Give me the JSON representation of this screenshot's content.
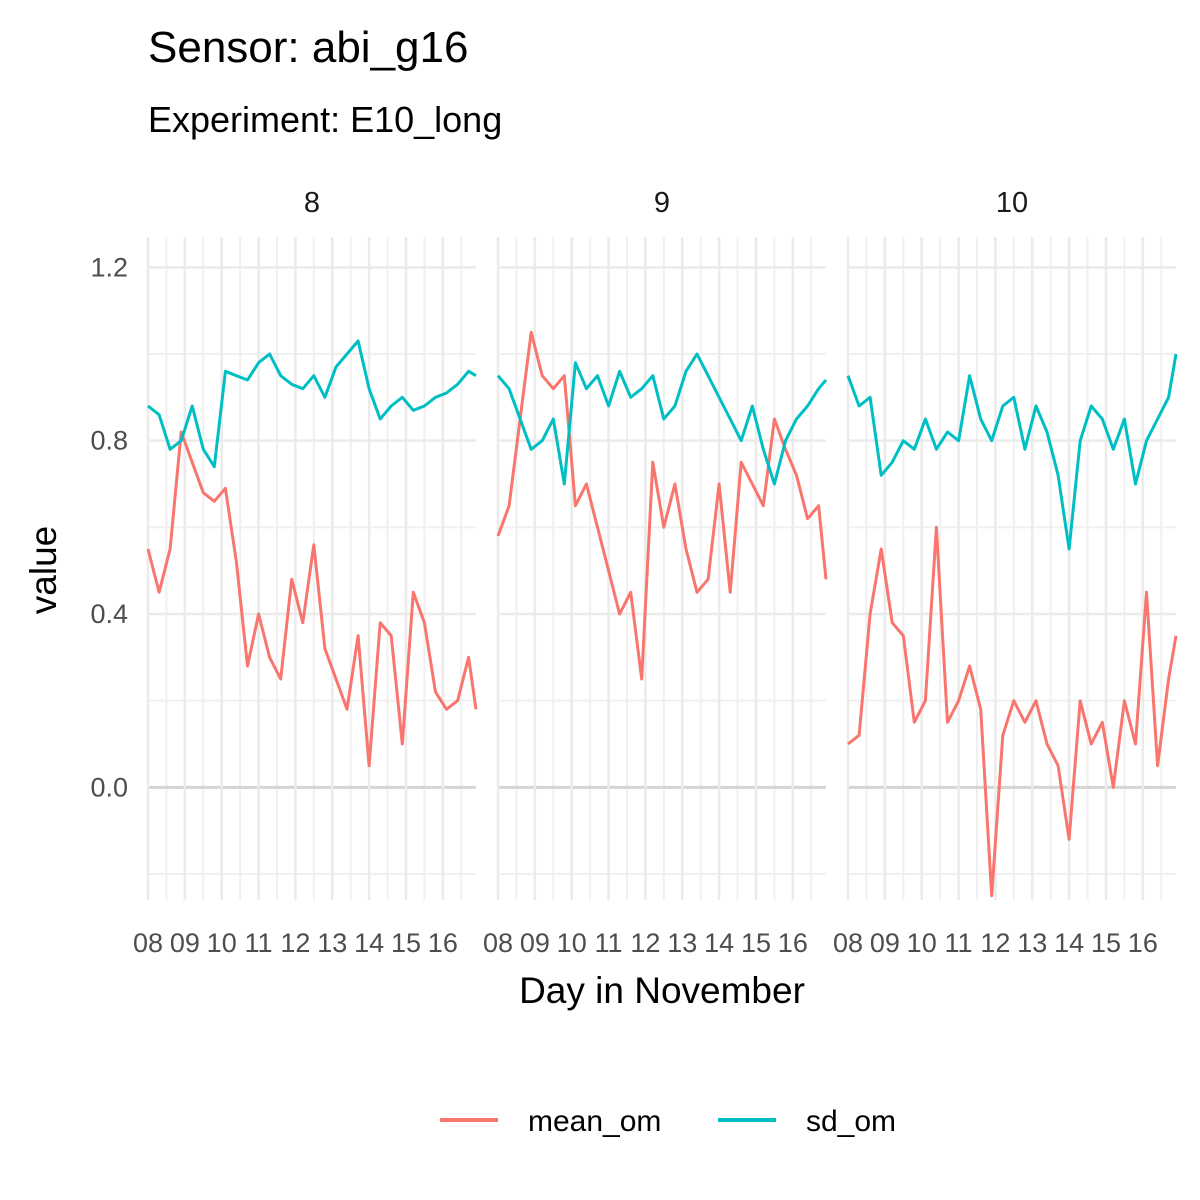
{
  "chart_data": {
    "type": "line",
    "title": "Sensor: abi_g16",
    "subtitle": "Experiment: E10_long",
    "xlabel": "Day in November",
    "ylabel": "value",
    "x_tick_labels": [
      "08",
      "09",
      "10",
      "11",
      "12",
      "13",
      "14",
      "15",
      "16"
    ],
    "x_range": [
      8,
      16.9
    ],
    "ylim": [
      -0.26,
      1.27
    ],
    "y_ticks": [
      0.0,
      0.4,
      0.8,
      1.2
    ],
    "y_tick_labels": [
      "0.0",
      "0.4",
      "0.8",
      "1.2"
    ],
    "grid": true,
    "legend_position": "bottom",
    "legend": [
      "mean_om",
      "sd_om"
    ],
    "colors": {
      "mean_om": "#F8766D",
      "sd_om": "#00BFC4"
    },
    "panels": [
      {
        "label": "8",
        "x": [
          8.0,
          8.3,
          8.6,
          8.9,
          9.2,
          9.5,
          9.8,
          10.1,
          10.4,
          10.7,
          11.0,
          11.3,
          11.6,
          11.9,
          12.2,
          12.5,
          12.8,
          13.1,
          13.4,
          13.7,
          14.0,
          14.3,
          14.6,
          14.9,
          15.2,
          15.5,
          15.8,
          16.1,
          16.4,
          16.7,
          16.9
        ],
        "series": [
          {
            "name": "mean_om",
            "values": [
              0.55,
              0.45,
              0.55,
              0.82,
              0.75,
              0.68,
              0.66,
              0.69,
              0.52,
              0.28,
              0.4,
              0.3,
              0.25,
              0.48,
              0.38,
              0.56,
              0.32,
              0.25,
              0.18,
              0.35,
              0.05,
              0.38,
              0.35,
              0.1,
              0.45,
              0.38,
              0.22,
              0.18,
              0.2,
              0.3,
              0.18
            ]
          },
          {
            "name": "sd_om",
            "values": [
              0.88,
              0.86,
              0.78,
              0.8,
              0.88,
              0.78,
              0.74,
              0.96,
              0.95,
              0.94,
              0.98,
              1.0,
              0.95,
              0.93,
              0.92,
              0.95,
              0.9,
              0.97,
              1.0,
              1.03,
              0.92,
              0.85,
              0.88,
              0.9,
              0.87,
              0.88,
              0.9,
              0.91,
              0.93,
              0.96,
              0.95
            ]
          }
        ]
      },
      {
        "label": "9",
        "x": [
          8.0,
          8.3,
          8.6,
          8.9,
          9.2,
          9.5,
          9.8,
          10.1,
          10.4,
          10.7,
          11.0,
          11.3,
          11.6,
          11.9,
          12.2,
          12.5,
          12.8,
          13.1,
          13.4,
          13.7,
          14.0,
          14.3,
          14.6,
          14.9,
          15.2,
          15.5,
          15.8,
          16.1,
          16.4,
          16.7,
          16.9
        ],
        "series": [
          {
            "name": "mean_om",
            "values": [
              0.58,
              0.65,
              0.85,
              1.05,
              0.95,
              0.92,
              0.95,
              0.65,
              0.7,
              0.6,
              0.5,
              0.4,
              0.45,
              0.25,
              0.75,
              0.6,
              0.7,
              0.55,
              0.45,
              0.48,
              0.7,
              0.45,
              0.75,
              0.7,
              0.65,
              0.85,
              0.78,
              0.72,
              0.62,
              0.65,
              0.48
            ]
          },
          {
            "name": "sd_om",
            "values": [
              0.95,
              0.92,
              0.85,
              0.78,
              0.8,
              0.85,
              0.7,
              0.98,
              0.92,
              0.95,
              0.88,
              0.96,
              0.9,
              0.92,
              0.95,
              0.85,
              0.88,
              0.96,
              1.0,
              0.95,
              0.9,
              0.85,
              0.8,
              0.88,
              0.78,
              0.7,
              0.8,
              0.85,
              0.88,
              0.92,
              0.94
            ]
          }
        ]
      },
      {
        "label": "10",
        "x": [
          8.0,
          8.3,
          8.6,
          8.9,
          9.2,
          9.5,
          9.8,
          10.1,
          10.4,
          10.7,
          11.0,
          11.3,
          11.6,
          11.9,
          12.2,
          12.5,
          12.8,
          13.1,
          13.4,
          13.7,
          14.0,
          14.3,
          14.6,
          14.9,
          15.2,
          15.5,
          15.8,
          16.1,
          16.4,
          16.7,
          16.9
        ],
        "series": [
          {
            "name": "mean_om",
            "values": [
              0.1,
              0.12,
              0.4,
              0.55,
              0.38,
              0.35,
              0.15,
              0.2,
              0.6,
              0.15,
              0.2,
              0.28,
              0.18,
              -0.25,
              0.12,
              0.2,
              0.15,
              0.2,
              0.1,
              0.05,
              -0.12,
              0.2,
              0.1,
              0.15,
              0.0,
              0.2,
              0.1,
              0.45,
              0.05,
              0.25,
              0.35
            ]
          },
          {
            "name": "sd_om",
            "values": [
              0.95,
              0.88,
              0.9,
              0.72,
              0.75,
              0.8,
              0.78,
              0.85,
              0.78,
              0.82,
              0.8,
              0.95,
              0.85,
              0.8,
              0.88,
              0.9,
              0.78,
              0.88,
              0.82,
              0.72,
              0.55,
              0.8,
              0.88,
              0.85,
              0.78,
              0.85,
              0.7,
              0.8,
              0.85,
              0.9,
              1.0
            ]
          }
        ]
      }
    ]
  }
}
